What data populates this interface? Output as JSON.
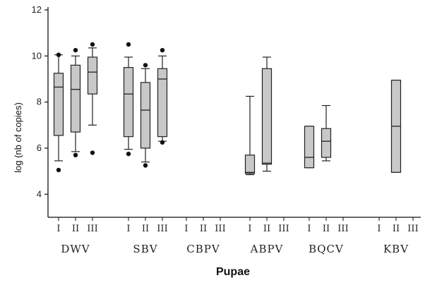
{
  "chart_data": {
    "type": "boxplot",
    "xlabel": "Pupae",
    "ylabel": "log (nb of copies)",
    "ylim": [
      3,
      12
    ],
    "yticks": [
      4,
      6,
      8,
      10,
      12
    ],
    "grid": false,
    "box_color": "#c8c8c8",
    "groups": [
      {
        "label": "DWV",
        "subgroups": [
          {
            "label": "I",
            "whisker_low": 5.45,
            "q1": 6.55,
            "median": 8.65,
            "q3": 9.25,
            "whisker_high": 10.05,
            "outliers": [
              5.05,
              10.05
            ]
          },
          {
            "label": "II",
            "whisker_low": 5.85,
            "q1": 6.7,
            "median": 8.55,
            "q3": 9.6,
            "whisker_high": 10.0,
            "outliers": [
              5.7,
              10.25
            ]
          },
          {
            "label": "III",
            "whisker_low": 7.0,
            "q1": 8.35,
            "median": 9.3,
            "q3": 9.95,
            "whisker_high": 10.35,
            "outliers": [
              5.8,
              10.5
            ]
          }
        ]
      },
      {
        "label": "SBV",
        "subgroups": [
          {
            "label": "I",
            "whisker_low": 5.95,
            "q1": 6.5,
            "median": 8.35,
            "q3": 9.5,
            "whisker_high": 9.95,
            "outliers": [
              5.75,
              10.5
            ]
          },
          {
            "label": "II",
            "whisker_low": 5.4,
            "q1": 6.0,
            "median": 7.65,
            "q3": 8.85,
            "whisker_high": 9.45,
            "outliers": [
              5.25,
              9.6
            ]
          },
          {
            "label": "III",
            "whisker_low": 6.3,
            "q1": 6.5,
            "median": 9.0,
            "q3": 9.45,
            "whisker_high": 10.0,
            "outliers": [
              6.25,
              10.25
            ]
          }
        ]
      },
      {
        "label": "CBPV",
        "subgroups": [
          {
            "label": "I"
          },
          {
            "label": "II"
          },
          {
            "label": "III"
          }
        ]
      },
      {
        "label": "ABPV",
        "subgroups": [
          {
            "label": "I",
            "whisker_low": 4.85,
            "q1": 4.9,
            "median": 4.95,
            "q3": 5.7,
            "whisker_high": 8.25,
            "outliers": []
          },
          {
            "label": "II",
            "whisker_low": 5.0,
            "q1": 5.3,
            "median": 5.35,
            "q3": 9.45,
            "whisker_high": 9.95,
            "outliers": []
          },
          {
            "label": "III"
          }
        ]
      },
      {
        "label": "BQCV",
        "subgroups": [
          {
            "label": "I",
            "whisker_low": 5.15,
            "q1": 5.15,
            "median": 5.6,
            "q3": 6.95,
            "whisker_high": 6.95,
            "outliers": []
          },
          {
            "label": "II",
            "whisker_low": 5.45,
            "q1": 5.6,
            "median": 6.3,
            "q3": 6.85,
            "whisker_high": 7.85,
            "outliers": []
          },
          {
            "label": "III"
          }
        ]
      },
      {
        "label": "KBV",
        "subgroups": [
          {
            "label": "I"
          },
          {
            "label": "II",
            "whisker_low": 4.95,
            "q1": 4.95,
            "median": 6.95,
            "q3": 8.95,
            "whisker_high": 8.95,
            "outliers": []
          },
          {
            "label": "III"
          }
        ]
      }
    ]
  }
}
